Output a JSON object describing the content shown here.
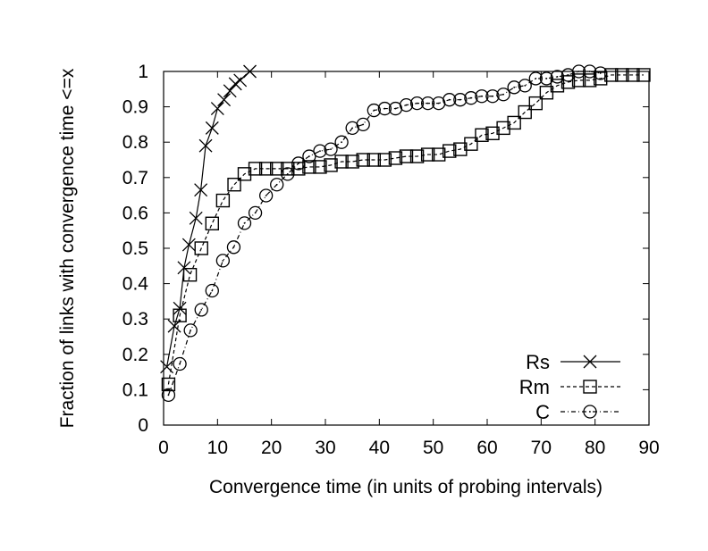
{
  "chart_data": {
    "type": "line",
    "title": "",
    "xlabel": "Convergence time (in units of probing intervals)",
    "ylabel": "Fraction of links with convergence time <=x",
    "xlim": [
      0,
      90
    ],
    "ylim": [
      0,
      1
    ],
    "xticks": [
      "0",
      "10",
      "20",
      "30",
      "40",
      "50",
      "60",
      "70",
      "80",
      "90"
    ],
    "yticks": [
      "0",
      "0.1",
      "0.2",
      "0.3",
      "0.4",
      "0.5",
      "0.6",
      "0.7",
      "0.8",
      "0.9",
      "1"
    ],
    "grid": false,
    "legend_position": "bottom-right",
    "series": [
      {
        "name": "Rs",
        "marker": "cross",
        "dash": "solid",
        "x": [
          0.6,
          2,
          3,
          3.8,
          4.7,
          6,
          6.9,
          7.8,
          9,
          10,
          11.2,
          12.3,
          13.3,
          14.2,
          16
        ],
        "y": [
          0.165,
          0.28,
          0.33,
          0.445,
          0.51,
          0.585,
          0.665,
          0.79,
          0.84,
          0.895,
          0.92,
          0.945,
          0.965,
          0.975,
          1.0
        ]
      },
      {
        "name": "Rm",
        "marker": "square",
        "dash": "dashed",
        "x": [
          0.9,
          3,
          4.9,
          7,
          9,
          11,
          13.1,
          15,
          17,
          19,
          21,
          23,
          25,
          27,
          29,
          31,
          33,
          35,
          37,
          39,
          41,
          43,
          45,
          47,
          49,
          51,
          53,
          55,
          57,
          59,
          61,
          63,
          65,
          67,
          69,
          71,
          73,
          75,
          77,
          79,
          81,
          83,
          85,
          87,
          89
        ],
        "y": [
          0.115,
          0.31,
          0.425,
          0.5,
          0.57,
          0.635,
          0.68,
          0.71,
          0.725,
          0.725,
          0.725,
          0.725,
          0.725,
          0.73,
          0.73,
          0.735,
          0.745,
          0.745,
          0.75,
          0.75,
          0.75,
          0.755,
          0.76,
          0.76,
          0.765,
          0.765,
          0.775,
          0.78,
          0.795,
          0.82,
          0.825,
          0.84,
          0.855,
          0.885,
          0.91,
          0.94,
          0.96,
          0.97,
          0.975,
          0.975,
          0.98,
          0.99,
          0.99,
          0.99,
          0.99
        ]
      },
      {
        "name": "C",
        "marker": "circle",
        "dash": "dashdot",
        "x": [
          0.9,
          3,
          5,
          7,
          9,
          11,
          13,
          15,
          17,
          19,
          21,
          23,
          25,
          27,
          29,
          31,
          33,
          35,
          37,
          39,
          41,
          43,
          45,
          47,
          49,
          51,
          53,
          55,
          57,
          59,
          61,
          63,
          65,
          67,
          69,
          71,
          73,
          75,
          77,
          79,
          81
        ],
        "y": [
          0.085,
          0.173,
          0.268,
          0.326,
          0.38,
          0.465,
          0.503,
          0.571,
          0.6,
          0.649,
          0.68,
          0.71,
          0.74,
          0.76,
          0.775,
          0.78,
          0.8,
          0.84,
          0.85,
          0.89,
          0.895,
          0.895,
          0.905,
          0.91,
          0.91,
          0.91,
          0.92,
          0.92,
          0.925,
          0.93,
          0.93,
          0.935,
          0.955,
          0.96,
          0.98,
          0.98,
          0.985,
          0.99,
          1.0,
          1.0,
          0.995
        ]
      }
    ]
  }
}
